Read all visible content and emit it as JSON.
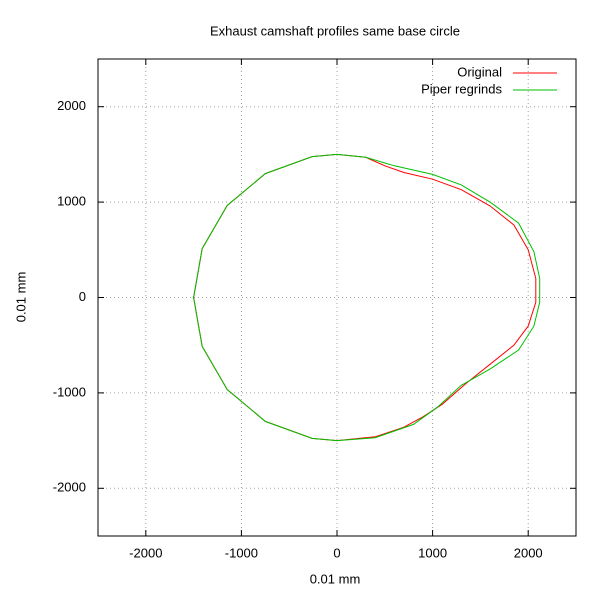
{
  "chart_data": {
    "type": "line",
    "title": "Exhaust camshaft profiles same base circle",
    "x_label": "0.01 mm",
    "y_label": "0.01 mm",
    "xlim": [
      -2500,
      2500
    ],
    "ylim": [
      -2500,
      2500
    ],
    "xticks": [
      -2000,
      -1000,
      0,
      1000,
      2000
    ],
    "yticks": [
      -2000,
      -1000,
      0,
      1000,
      2000
    ],
    "grid": true,
    "legend": "top-right",
    "series": [
      {
        "name": "Original",
        "color": "#ff0000",
        "x": [
          0,
          -260,
          -750,
          -1149,
          -1410,
          -1500,
          -1410,
          -1149,
          -750,
          -260,
          0,
          400,
          700,
          900,
          1100,
          1350,
          1600,
          1850,
          2000,
          2080,
          2080,
          2000,
          1850,
          1600,
          1300,
          1000,
          700,
          500,
          300,
          0
        ],
        "values": [
          1500,
          1477,
          1299,
          964,
          513,
          0,
          -513,
          -964,
          -1299,
          -1477,
          -1500,
          -1460,
          -1360,
          -1250,
          -1120,
          -900,
          -700,
          -500,
          -300,
          -50,
          200,
          500,
          760,
          960,
          1130,
          1240,
          1310,
          1380,
          1470,
          1500
        ]
      },
      {
        "name": "Piper regrinds",
        "color": "#00c000",
        "x": [
          0,
          -260,
          -750,
          -1149,
          -1410,
          -1500,
          -1410,
          -1149,
          -750,
          -260,
          0,
          400,
          800,
          1050,
          1300,
          1600,
          1900,
          2060,
          2120,
          2120,
          2060,
          1900,
          1600,
          1300,
          1000,
          600,
          300,
          0
        ],
        "values": [
          1500,
          1477,
          1299,
          964,
          513,
          0,
          -513,
          -964,
          -1299,
          -1477,
          -1500,
          -1470,
          -1330,
          -1150,
          -920,
          -750,
          -550,
          -300,
          -50,
          200,
          480,
          780,
          1000,
          1180,
          1290,
          1380,
          1470,
          1500
        ]
      }
    ]
  }
}
